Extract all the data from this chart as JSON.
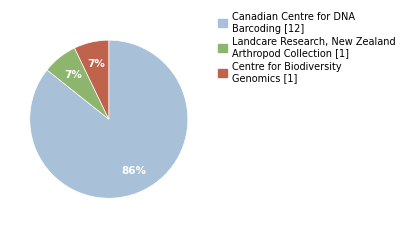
{
  "legend_labels": [
    "Canadian Centre for DNA\nBarcoding [12]",
    "Landcare Research, New Zealand\nArthropod Collection [1]",
    "Centre for Biodiversity\nGenomics [1]"
  ],
  "values": [
    12,
    1,
    1
  ],
  "colors": [
    "#a8c0d8",
    "#8db56e",
    "#c0634d"
  ],
  "startangle": 90,
  "background_color": "#ffffff",
  "pct_fontsize": 7.5,
  "legend_fontsize": 7.0
}
